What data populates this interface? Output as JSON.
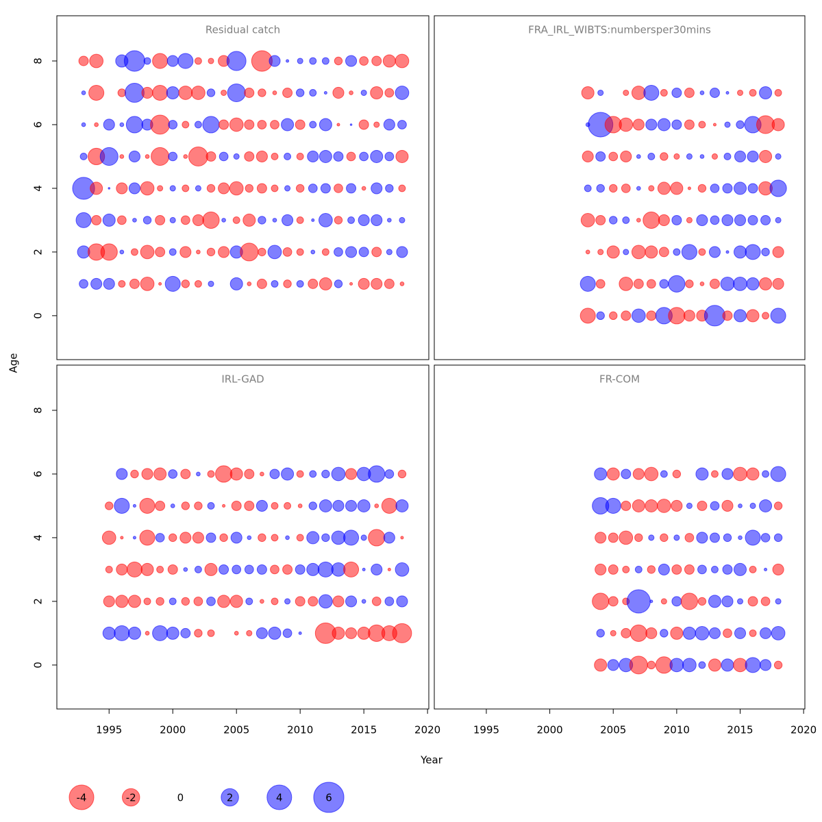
{
  "chart_data": {
    "type": "bubble",
    "xlabel": "Year",
    "ylabel": "Age",
    "xlim": [
      1990.9,
      2020.1
    ],
    "ylim": [
      -1.38,
      9.42
    ],
    "xticks": [
      1995,
      2000,
      2005,
      2010,
      2015,
      2020
    ],
    "yticks": [
      0,
      2,
      4,
      6,
      8
    ],
    "negative_color": "#ff0000",
    "positive_color": "#0000ff",
    "legend": [
      -4,
      -2,
      0,
      2,
      4,
      6
    ],
    "panels": [
      {
        "title": "Residual catch",
        "x": [
          1993,
          1994,
          1995,
          1996,
          1997,
          1998,
          1999,
          2000,
          2001,
          2002,
          2003,
          2004,
          2005,
          2006,
          2007,
          2008,
          2009,
          2010,
          2011,
          2012,
          2013,
          2014,
          2015,
          2016,
          2017,
          2018
        ],
        "y": [
          1,
          2,
          3,
          4,
          5,
          6,
          7,
          8
        ],
        "values": [
          [
            0.5,
            0.8,
            0.8,
            -0.3,
            -0.6,
            -1.2,
            -0.05,
            1.5,
            -0.4,
            -0.3,
            0.2,
            0,
            1,
            -0.1,
            -0.6,
            0.3,
            -0.4,
            0.3,
            -0.6,
            -1,
            0.4,
            -0.05,
            -0.8,
            -0.8,
            -0.6,
            -0.1
          ],
          [
            1,
            -1.8,
            -1.8,
            0.1,
            -0.3,
            -1.2,
            -0.6,
            0.3,
            -0.8,
            -0.1,
            -0.4,
            -0.8,
            1,
            -2.1,
            -0.4,
            1.2,
            -0.5,
            -0.3,
            0.1,
            -0.3,
            0.5,
            0.8,
            0.6,
            -0.6,
            0.2,
            0.8
          ],
          [
            1.5,
            -0.6,
            1,
            -0.5,
            0.1,
            0.4,
            -0.6,
            0.2,
            -0.5,
            -0.8,
            -1.8,
            0.1,
            -0.3,
            -1,
            0.4,
            0.1,
            0.8,
            -0.3,
            0.05,
            1.2,
            -0.4,
            0.3,
            0.8,
            0.8,
            0.1,
            0.2
          ],
          [
            3.2,
            -1,
            0.02,
            -0.8,
            0.8,
            -1.2,
            -0.2,
            0.2,
            -0.3,
            0.2,
            -0.4,
            -0.8,
            -1.2,
            -0.4,
            -0.6,
            -0.3,
            0.2,
            -0.4,
            0.5,
            0.6,
            -0.5,
            0.6,
            -0.1,
            0.8,
            0.4,
            -0.3
          ],
          [
            0.3,
            -1.8,
            2.1,
            -0.1,
            0.8,
            -0.1,
            -2.1,
            0.5,
            -0.1,
            -2.4,
            -0.6,
            0.5,
            0.2,
            -0.6,
            -0.8,
            -0.3,
            0.3,
            -0.3,
            0.8,
            1,
            0.6,
            -0.5,
            0.5,
            1,
            0.5,
            -1
          ],
          [
            0.1,
            -0.1,
            0.8,
            0.1,
            1.8,
            0.8,
            -2.4,
            0.5,
            -0.3,
            0.3,
            1.8,
            -0.6,
            -1.2,
            -0.6,
            -0.5,
            -0.5,
            1,
            -0.6,
            0.3,
            1,
            -0.05,
            0.02,
            -0.6,
            -0.2,
            0.8,
            0.5
          ],
          [
            0.1,
            -1.5,
            0,
            -0.4,
            2.4,
            -0.8,
            -1.5,
            1,
            -1.2,
            -1.2,
            0.4,
            -0.2,
            2.1,
            -0.6,
            -0.4,
            -0.1,
            -0.6,
            0.4,
            0.3,
            0.05,
            -0.8,
            -0.1,
            0.2,
            -1,
            -0.5,
            1.2
          ],
          [
            -0.6,
            -1.2,
            0,
            1,
            2.8,
            0.3,
            -1.5,
            0.8,
            1.5,
            -0.3,
            -0.2,
            -0.8,
            2.4,
            0,
            -2.8,
            0.8,
            0.05,
            0.2,
            0.3,
            0.3,
            -0.4,
            0.8,
            -0.5,
            -0.6,
            -1,
            -1.2
          ]
        ]
      },
      {
        "title": "FRA_IRL_WIBTS:numbersper30mins",
        "x": [
          2003,
          2004,
          2005,
          2006,
          2007,
          2008,
          2009,
          2010,
          2011,
          2012,
          2013,
          2014,
          2015,
          2016,
          2017,
          2018
        ],
        "y": [
          0,
          1,
          2,
          3,
          4,
          5,
          6,
          7
        ],
        "values": [
          [
            -1.5,
            0.4,
            -0.4,
            -0.6,
            1.2,
            -0.6,
            1.8,
            -1.8,
            -0.8,
            -0.8,
            2.8,
            -0.6,
            1,
            -1,
            -0.3,
            1.5
          ],
          [
            1.5,
            -0.5,
            0,
            -1.2,
            -0.6,
            -0.5,
            0.5,
            1.8,
            -0.4,
            -0.1,
            -0.6,
            1.2,
            1.2,
            1,
            -1,
            -0.8
          ],
          [
            -0.1,
            -0.2,
            -1,
            0.2,
            -1.2,
            -1,
            -0.6,
            0.3,
            1.5,
            -0.3,
            0.8,
            0.05,
            1,
            1.5,
            0.4,
            -0.8
          ],
          [
            -1.2,
            -0.6,
            0.4,
            0.3,
            -0.1,
            -1.8,
            -0.8,
            0.6,
            -0.2,
            0.8,
            0.5,
            0.8,
            0.8,
            0.6,
            0.6,
            0.2
          ],
          [
            0.3,
            0.4,
            -0.4,
            -0.5,
            0.1,
            -0.2,
            -1,
            -1,
            -0.05,
            -0.4,
            0.5,
            0.6,
            1,
            0.6,
            -1.2,
            1.8
          ],
          [
            -0.8,
            0.6,
            -0.5,
            -0.8,
            0.1,
            0.3,
            -0.4,
            -0.2,
            0.2,
            0.1,
            -0.2,
            0.3,
            0.8,
            0.8,
            -1,
            0.2
          ],
          [
            0.1,
            4,
            -1.8,
            -1.2,
            -0.8,
            0.8,
            1,
            0.6,
            -0.6,
            -0.3,
            -0.05,
            0.2,
            0.4,
            1.8,
            -2.1,
            -1
          ],
          [
            -1,
            0.2,
            0,
            -0.2,
            -1.2,
            1.5,
            -0.3,
            0.6,
            -0.6,
            0.1,
            0.6,
            0.05,
            -0.2,
            -0.3,
            1,
            -0.3
          ]
        ]
      },
      {
        "title": "IRL-GAD",
        "x": [
          1995,
          1996,
          1997,
          1998,
          1999,
          2000,
          2001,
          2002,
          2003,
          2004,
          2005,
          2006,
          2007,
          2008,
          2009,
          2010,
          2011,
          2012,
          2013,
          2014,
          2015,
          2016,
          2017,
          2018
        ],
        "y": [
          1,
          2,
          3,
          4,
          5,
          6
        ],
        "values": [
          [
            1,
            1.5,
            1,
            -0.1,
            1.5,
            1,
            0.6,
            -0.4,
            -0.3,
            0,
            -0.1,
            -0.2,
            0.8,
            1,
            0.5,
            0.05,
            0,
            -2.8,
            -1,
            -0.8,
            -1,
            -1.8,
            -1.5,
            -2.4
          ],
          [
            -0.8,
            -1,
            -1,
            -0.3,
            -0.4,
            0.3,
            -0.4,
            -0.5,
            0.5,
            -1,
            -1,
            0.3,
            -0.1,
            -0.3,
            0.2,
            -0.6,
            -0.6,
            1.2,
            -0.8,
            0.8,
            0.1,
            -0.5,
            0.5,
            0.8
          ],
          [
            -0.3,
            -0.8,
            -1.5,
            -1,
            -0.3,
            -0.6,
            0.1,
            0.3,
            -1,
            0.6,
            0.5,
            0.5,
            0.6,
            -0.5,
            -0.6,
            0.6,
            1,
            1.5,
            1.2,
            -1.5,
            0.05,
            0.8,
            -0.05,
            1.2
          ],
          [
            -1.2,
            -0.05,
            0.05,
            -1.5,
            0.5,
            -0.4,
            -0.8,
            -0.8,
            0.6,
            -0.4,
            0.8,
            0.1,
            -0.4,
            -0.3,
            0.1,
            -0.3,
            1,
            0.4,
            1.2,
            1.5,
            0.2,
            -1.8,
            0.8,
            -0.05
          ],
          [
            -0.4,
            1.5,
            0.05,
            -1.5,
            -0.6,
            0.1,
            -0.4,
            -0.4,
            0.3,
            -0.05,
            -0.6,
            -0.6,
            0.8,
            -0.3,
            -0.3,
            -0.1,
            0.4,
            1,
            0.8,
            0.8,
            1,
            -0.1,
            -1.5,
            1
          ],
          [
            0,
            0.8,
            -0.4,
            -0.8,
            -1,
            0.5,
            -0.6,
            0.1,
            -0.3,
            -1.8,
            -1,
            -0.6,
            -0.1,
            0.6,
            1,
            -0.3,
            0.3,
            0.4,
            1.2,
            -0.8,
            1.2,
            1.8,
            0.5,
            -0.4
          ]
        ]
      },
      {
        "title": "FR-COM",
        "x": [
          2004,
          2005,
          2006,
          2007,
          2008,
          2009,
          2010,
          2011,
          2012,
          2013,
          2014,
          2015,
          2016,
          2017,
          2018
        ],
        "y": [
          0,
          1,
          2,
          3,
          4,
          5,
          6
        ],
        "values": [
          [
            -1,
            0.8,
            1.2,
            -2.1,
            -0.4,
            -1.8,
            1.2,
            1.2,
            0.3,
            -1,
            1,
            -1.2,
            1.5,
            0.8,
            -0.4
          ],
          [
            0.4,
            -0.2,
            -0.6,
            -1.8,
            -0.8,
            0.4,
            -1,
            1,
            1.2,
            0.8,
            -0.5,
            0.8,
            -0.3,
            0.8,
            1.2
          ],
          [
            -1.8,
            -0.6,
            -0.3,
            3.6,
            0.05,
            -0.2,
            0.6,
            -1.8,
            -0.4,
            1,
            0.8,
            0.2,
            -0.6,
            -0.5,
            0.2
          ],
          [
            -0.8,
            -0.6,
            -0.3,
            0.3,
            -0.4,
            0.8,
            -0.6,
            -0.6,
            0.5,
            0.3,
            0.6,
            1,
            -0.3,
            0.05,
            -0.8
          ],
          [
            -0.8,
            -0.6,
            -1.2,
            -0.4,
            0.2,
            -0.4,
            0.2,
            -0.5,
            0.8,
            0.6,
            0.4,
            0.1,
            1.5,
            0.5,
            0.4
          ],
          [
            1.8,
            1.5,
            -0.6,
            -1,
            -1,
            -1.2,
            -0.8,
            0.2,
            -0.6,
            0.5,
            -0.8,
            0.1,
            0.2,
            1,
            -0.4
          ],
          [
            1,
            -1,
            0.6,
            -0.8,
            -1.2,
            0.3,
            -0.4,
            0,
            1,
            -0.3,
            0.8,
            -1.2,
            -1,
            0.3,
            1.5
          ]
        ]
      }
    ]
  }
}
